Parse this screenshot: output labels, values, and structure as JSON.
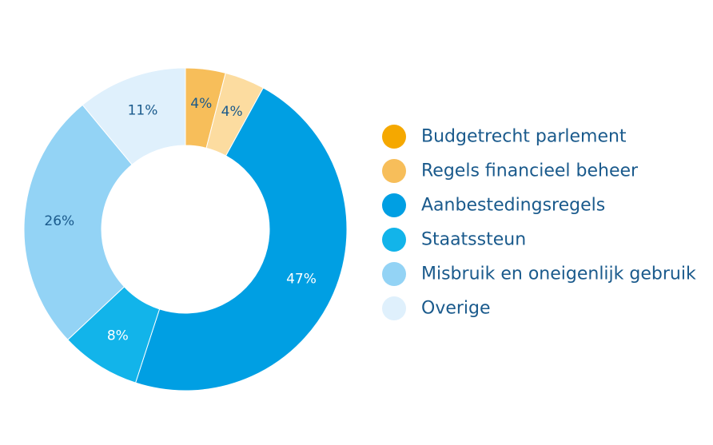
{
  "chart_data": {
    "type": "pie",
    "subtype": "donut",
    "title": "",
    "categories": [
      "Budgetrecht parlement",
      "Regels financieel beheer",
      "Aanbestedingsregels",
      "Staatssteun",
      "Misbruik en oneigenlijk gebruik",
      "Overige"
    ],
    "values": [
      4,
      4,
      47,
      8,
      26,
      11
    ],
    "value_labels": [
      "4%",
      "4%",
      "47%",
      "8%",
      "26%",
      "11%"
    ],
    "colors": [
      "#f7be5a",
      "#fcdca0",
      "#009fe3",
      "#12b4ea",
      "#93d3f5",
      "#dff0fc"
    ],
    "legend_colors": [
      "#f5a800",
      "#f7be5a",
      "#009fe3",
      "#12b4ea",
      "#93d3f5",
      "#dff0fc"
    ],
    "label_colors": [
      "#1a5a8c",
      "#1a5a8c",
      "#ffffff",
      "#ffffff",
      "#1a5a8c",
      "#1a5a8c"
    ],
    "legend_position": "right"
  }
}
